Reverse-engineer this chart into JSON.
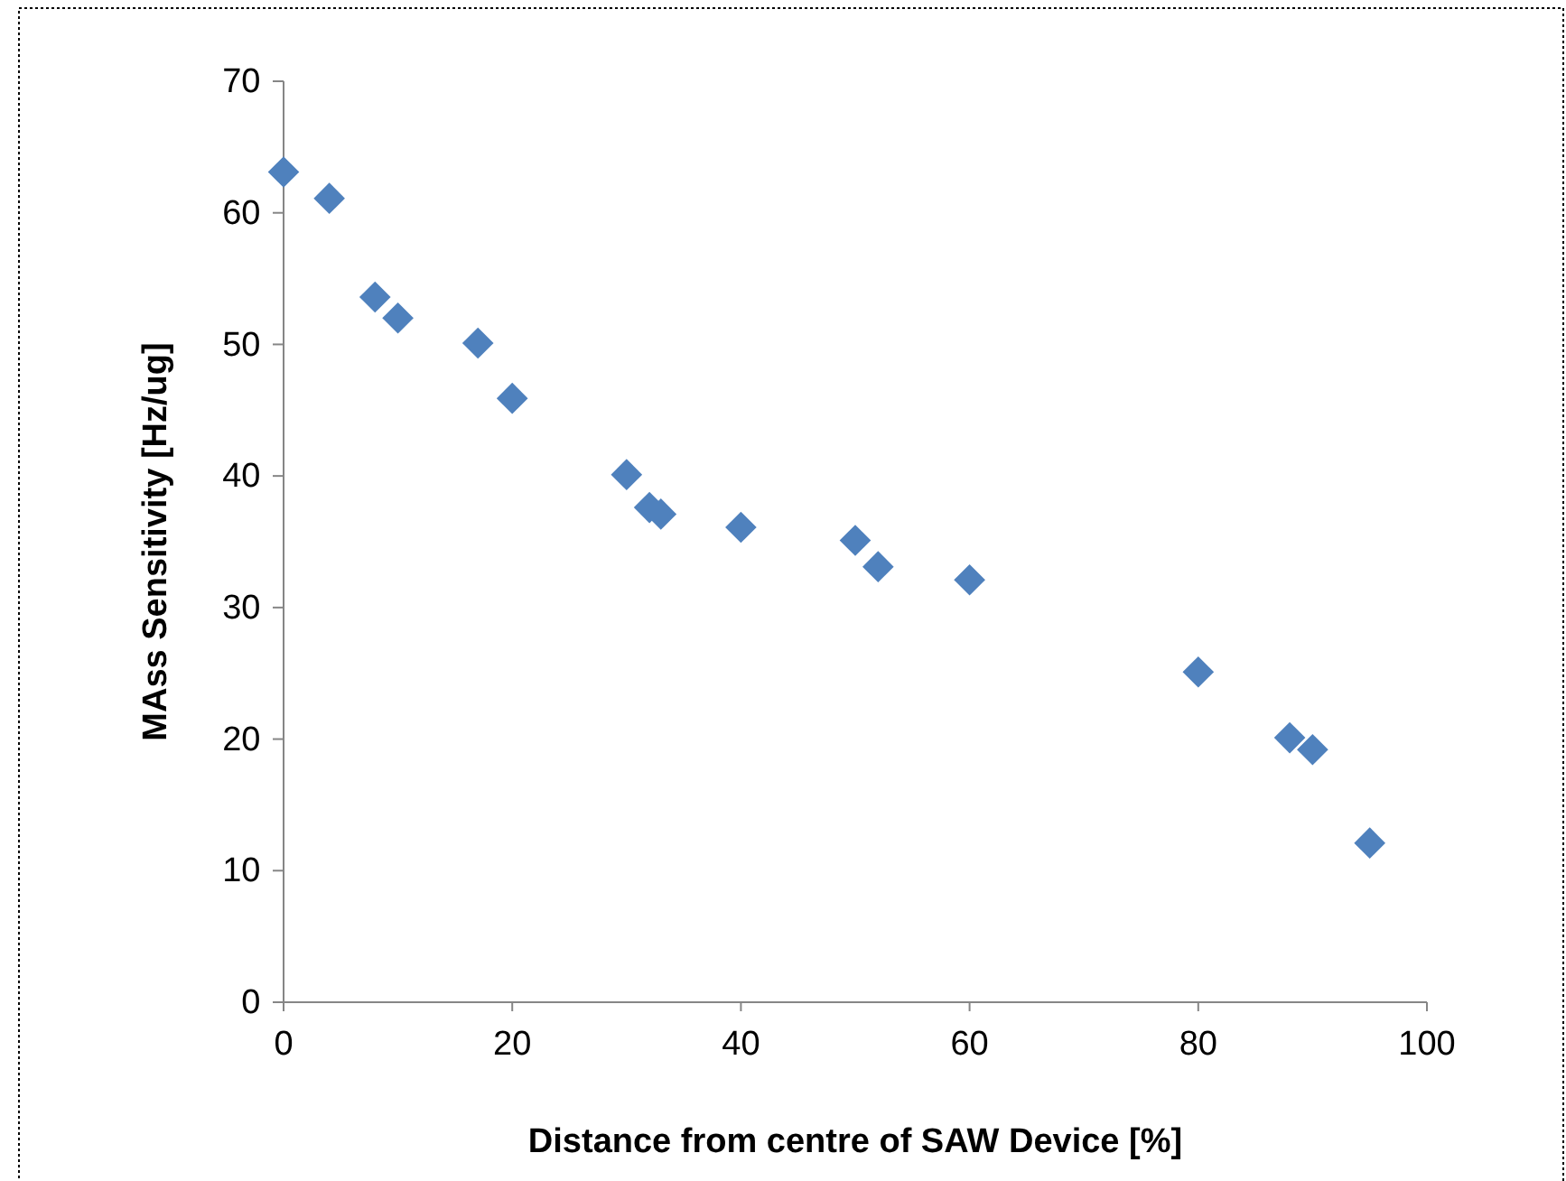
{
  "chart_data": {
    "type": "scatter",
    "xlabel": "Distance from centre of SAW Device [%]",
    "ylabel": "MAss Sensitivity [Hz/ug]",
    "x": [
      0,
      4,
      8,
      10,
      17,
      20,
      30,
      32,
      33,
      40,
      50,
      52,
      60,
      80,
      88,
      90,
      95
    ],
    "series": [
      {
        "color": "#4f81bd",
        "values": [
          63.1,
          61.1,
          53.6,
          52,
          50.1,
          45.9,
          40.1,
          37.6,
          37.1,
          36.1,
          35.1,
          33.1,
          32.1,
          25.1,
          20.1,
          19.2,
          12.1
        ]
      }
    ],
    "xlim": [
      0,
      100
    ],
    "xticks": [
      0,
      20,
      40,
      60,
      80,
      100
    ],
    "ylim": [
      0,
      70
    ],
    "yticks": [
      0,
      10,
      20,
      30,
      40,
      50,
      60,
      70
    ],
    "marker": "diamond",
    "grid": false
  }
}
